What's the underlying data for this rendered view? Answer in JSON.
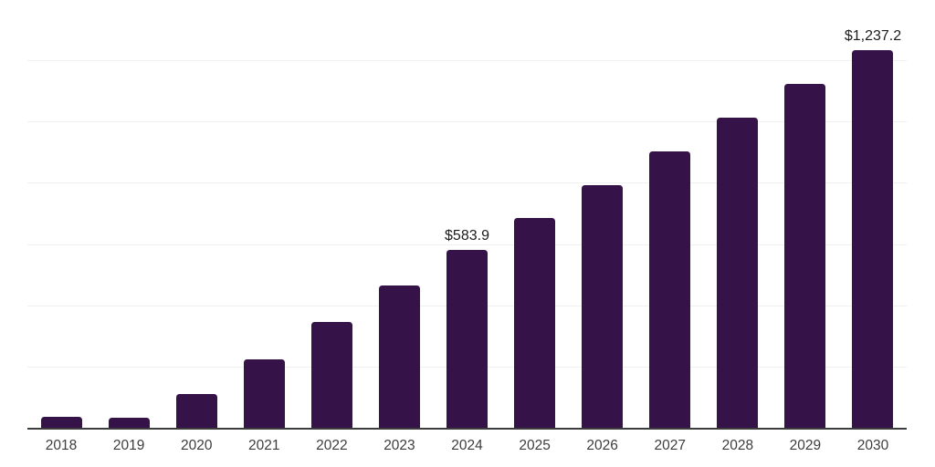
{
  "chart_data": {
    "type": "bar",
    "title": "",
    "xlabel": "",
    "ylabel": "",
    "categories": [
      "2018",
      "2019",
      "2020",
      "2021",
      "2022",
      "2023",
      "2024",
      "2025",
      "2026",
      "2027",
      "2028",
      "2029",
      "2030"
    ],
    "values": [
      39,
      37,
      114,
      225,
      348,
      469,
      583.9,
      689,
      796,
      907,
      1017,
      1126,
      1237.2
    ],
    "data_labels": [
      "",
      "",
      "",
      "",
      "",
      "",
      "$583.9",
      "",
      "",
      "",
      "",
      "",
      "$1,237.2"
    ],
    "ylim": [
      0,
      1400
    ],
    "grid_step": 200,
    "grid": true,
    "legend": false,
    "colors": {
      "bar": "#351349",
      "gridline": "#f0f0f0",
      "axis": "#3d3d3d",
      "tick_label": "#3d3d3d",
      "data_label": "#1b1b1b",
      "background": "#ffffff"
    }
  }
}
